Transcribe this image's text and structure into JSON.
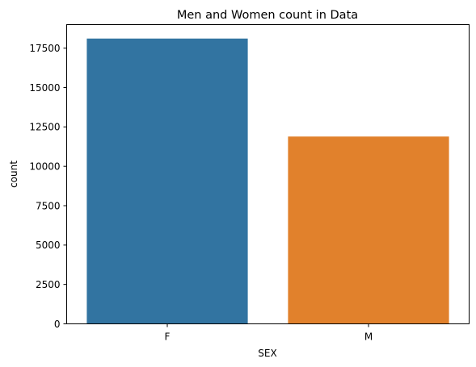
{
  "chart_data": {
    "type": "bar",
    "title": "Men and Women count in Data",
    "xlabel": "SEX",
    "ylabel": "count",
    "categories": [
      "F",
      "M"
    ],
    "values": [
      18110,
      11890
    ],
    "bar_colors": [
      "#3274a1",
      "#e1812c"
    ],
    "ylim": [
      0,
      18995
    ],
    "yticks": [
      0,
      2500,
      5000,
      7500,
      10000,
      12500,
      15000,
      17500
    ],
    "ytick_labels": [
      "0",
      "2500",
      "5000",
      "7500",
      "10000",
      "12500",
      "15000",
      "17500"
    ],
    "grid": false,
    "legend": "none"
  }
}
